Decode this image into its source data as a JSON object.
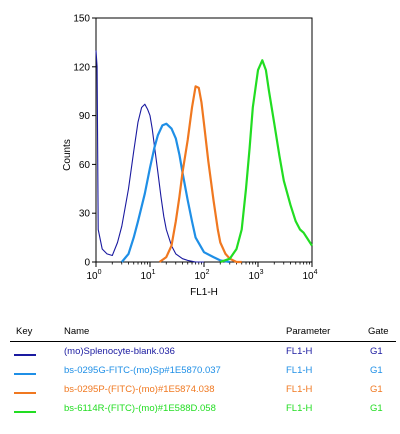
{
  "chart_data": {
    "type": "line",
    "title": "",
    "xlabel": "FL1-H",
    "ylabel": "Counts",
    "xscale": "log",
    "xlim": [
      1,
      10000
    ],
    "ylim": [
      0,
      150
    ],
    "x_ticks": [
      {
        "value": 1,
        "base": "10",
        "exp": "0"
      },
      {
        "value": 10,
        "base": "10",
        "exp": "1"
      },
      {
        "value": 100,
        "base": "10",
        "exp": "2"
      },
      {
        "value": 1000,
        "base": "10",
        "exp": "3"
      },
      {
        "value": 10000,
        "base": "10",
        "exp": "4"
      }
    ],
    "y_ticks": [
      {
        "value": 0,
        "label": "0"
      },
      {
        "value": 30,
        "label": "30"
      },
      {
        "value": 60,
        "label": "60"
      },
      {
        "value": 90,
        "label": "90"
      },
      {
        "value": 120,
        "label": "120"
      },
      {
        "value": 150,
        "label": "150"
      }
    ],
    "series": [
      {
        "name": "(mo)Splenocyte-blank.036",
        "color": "#1a1aa0",
        "x": [
          1,
          1.05,
          1.1,
          1.3,
          1.6,
          2,
          2.5,
          3,
          4,
          5,
          6,
          7,
          8,
          9,
          10,
          11,
          12,
          14,
          16,
          18,
          20,
          25,
          30,
          40,
          50,
          70,
          100
        ],
        "y": [
          130,
          120,
          20,
          8,
          5,
          4,
          12,
          22,
          45,
          68,
          86,
          95,
          97,
          94,
          90,
          82,
          72,
          55,
          40,
          28,
          20,
          10,
          5,
          2,
          1,
          0,
          0
        ]
      },
      {
        "name": "bs-0295G-FITC-(mo)Sp#1E5870.037",
        "color": "#1f8fe6",
        "x": [
          3,
          4,
          5,
          6,
          8,
          10,
          12,
          14,
          17,
          20,
          25,
          30,
          35,
          40,
          50,
          60,
          70,
          100,
          150,
          200,
          300
        ],
        "y": [
          0,
          5,
          15,
          25,
          42,
          58,
          70,
          78,
          84,
          85,
          82,
          76,
          66,
          55,
          38,
          25,
          15,
          6,
          3,
          1,
          0
        ]
      },
      {
        "name": "bs-0295P-(FITC)-(mo)#1E5874.038",
        "color": "#f07820",
        "x": [
          15,
          20,
          25,
          30,
          35,
          40,
          50,
          60,
          70,
          80,
          90,
          100,
          120,
          150,
          180,
          200,
          250,
          300,
          400,
          500
        ],
        "y": [
          0,
          3,
          10,
          25,
          40,
          55,
          75,
          95,
          108,
          107,
          98,
          85,
          62,
          38,
          20,
          12,
          5,
          2,
          0,
          0
        ]
      },
      {
        "name": "bs-6114R-(FITC)-(mo)#1E588D.058",
        "color": "#22dd22",
        "x": [
          200,
          300,
          400,
          500,
          600,
          700,
          800,
          1000,
          1200,
          1400,
          1600,
          2000,
          2500,
          3000,
          4000,
          5000,
          6000,
          7000,
          8000,
          10000
        ],
        "y": [
          0,
          2,
          8,
          20,
          45,
          70,
          95,
          118,
          124,
          118,
          105,
          85,
          65,
          50,
          35,
          25,
          20,
          18,
          15,
          10
        ]
      }
    ]
  },
  "legend": {
    "headers": {
      "key": "Key",
      "name": "Name",
      "parameter": "Parameter",
      "gate": "Gate"
    },
    "rows": [
      {
        "name": "(mo)Splenocyte-blank.036",
        "parameter": "FL1-H",
        "gate": "G1",
        "color": "#1a1aa0"
      },
      {
        "name": "bs-0295G-FITC-(mo)Sp#1E5870.037",
        "parameter": "FL1-H",
        "gate": "G1",
        "color": "#1f8fe6"
      },
      {
        "name": "bs-0295P-(FITC)-(mo)#1E5874.038",
        "parameter": "FL1-H",
        "gate": "G1",
        "color": "#f07820"
      },
      {
        "name": "bs-6114R-(FITC)-(mo)#1E588D.058",
        "parameter": "FL1-H",
        "gate": "G1",
        "color": "#22dd22"
      }
    ]
  }
}
